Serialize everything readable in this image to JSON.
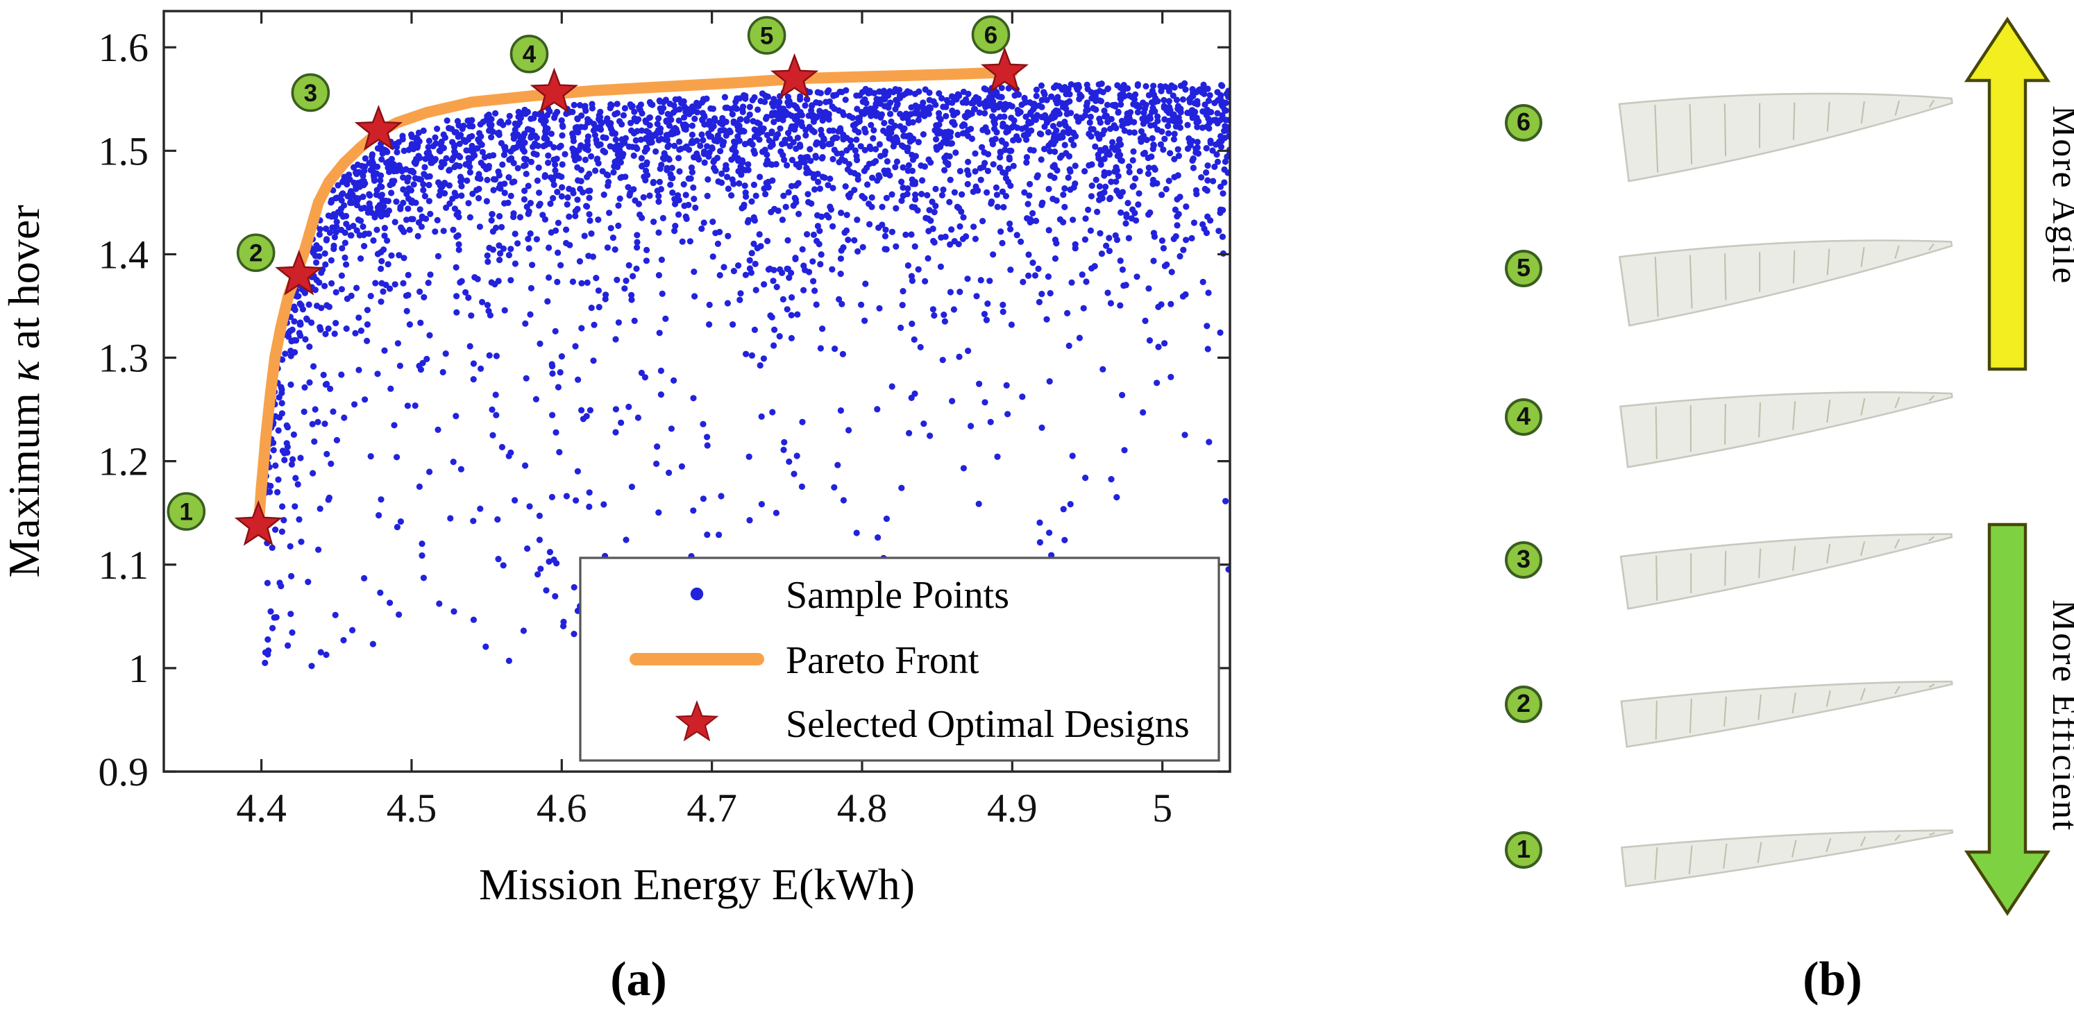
{
  "figure": {
    "panel_a_label": "(a)",
    "panel_b_label": "(b)"
  },
  "chart_data": {
    "type": "scatter",
    "title": "",
    "xlabel": "Mission Energy E(kWh)",
    "ylabel": "Maximum κ at hover",
    "xlim": [
      4.335,
      5.045
    ],
    "ylim": [
      0.9,
      1.635
    ],
    "grid": false,
    "legend_position": "inside lower-right",
    "xticks": [
      {
        "value": 4.4,
        "label": "4.4"
      },
      {
        "value": 4.5,
        "label": "4.5"
      },
      {
        "value": 4.6,
        "label": "4.6"
      },
      {
        "value": 4.7,
        "label": "4.7"
      },
      {
        "value": 4.8,
        "label": "4.8"
      },
      {
        "value": 4.9,
        "label": "4.9"
      },
      {
        "value": 5.0,
        "label": "5"
      }
    ],
    "yticks": [
      {
        "value": 0.9,
        "label": "0.9"
      },
      {
        "value": 1.0,
        "label": "1"
      },
      {
        "value": 1.1,
        "label": "1.1"
      },
      {
        "value": 1.2,
        "label": "1.2"
      },
      {
        "value": 1.3,
        "label": "1.3"
      },
      {
        "value": 1.4,
        "label": "1.4"
      },
      {
        "value": 1.5,
        "label": "1.5"
      },
      {
        "value": 1.6,
        "label": "1.6"
      }
    ],
    "legend": {
      "entries": [
        {
          "label": "Sample Points",
          "marker": "dot"
        },
        {
          "label": "Pareto Front",
          "marker": "line"
        },
        {
          "label": "Selected Optimal Designs",
          "marker": "star"
        }
      ]
    },
    "colors": {
      "samples": "#2222dd",
      "pareto": "#f7a24b",
      "stars": "#cf2128",
      "star_edge": "#8a1014",
      "badge": "#8dc63f",
      "badge_edge": "#3a5e20",
      "axis": "#262626"
    },
    "sample_points": {
      "count": 3200,
      "seed": 7,
      "x_range": [
        4.402,
        5.045
      ],
      "y_min": 1.0,
      "envelope_extension": [
        5.045,
        1.578
      ],
      "description": "Monte Carlo design sample cloud bounded above/left by the Pareto front; densest within ~0.05 of the front, sparse tail down to kappa ~1.0"
    },
    "pareto_front": [
      [
        4.398,
        1.135
      ],
      [
        4.4,
        1.175
      ],
      [
        4.403,
        1.225
      ],
      [
        4.406,
        1.265
      ],
      [
        4.409,
        1.3
      ],
      [
        4.413,
        1.33
      ],
      [
        4.418,
        1.36
      ],
      [
        4.423,
        1.38
      ],
      [
        4.428,
        1.4
      ],
      [
        4.433,
        1.425
      ],
      [
        4.438,
        1.45
      ],
      [
        4.445,
        1.47
      ],
      [
        4.455,
        1.488
      ],
      [
        4.465,
        1.502
      ],
      [
        4.478,
        1.518
      ],
      [
        4.49,
        1.527
      ],
      [
        4.51,
        1.537
      ],
      [
        4.54,
        1.547
      ],
      [
        4.58,
        1.553
      ],
      [
        4.62,
        1.558
      ],
      [
        4.67,
        1.562
      ],
      [
        4.72,
        1.566
      ],
      [
        4.76,
        1.57
      ],
      [
        4.81,
        1.572
      ],
      [
        4.86,
        1.574
      ],
      [
        4.9,
        1.576
      ]
    ],
    "selected_designs": [
      {
        "id": "1",
        "x": 4.398,
        "y": 1.138,
        "badge_dx": -52,
        "badge_dy": -10
      },
      {
        "id": "2",
        "x": 4.425,
        "y": 1.38,
        "badge_dx": -31,
        "badge_dy": -16
      },
      {
        "id": "3",
        "x": 4.478,
        "y": 1.52,
        "badge_dx": -49,
        "badge_dy": -27
      },
      {
        "id": "4",
        "x": 4.595,
        "y": 1.556,
        "badge_dx": -18,
        "badge_dy": -28
      },
      {
        "id": "5",
        "x": 4.755,
        "y": 1.57,
        "badge_dx": -20,
        "badge_dy": -31
      },
      {
        "id": "6",
        "x": 4.895,
        "y": 1.576,
        "badge_dx": -10,
        "badge_dy": -27
      }
    ]
  },
  "panel_b": {
    "designs": [
      {
        "id": "6",
        "chord": 56,
        "tilt": -7
      },
      {
        "id": "5",
        "chord": 50,
        "tilt": -8
      },
      {
        "id": "4",
        "chord": 44,
        "tilt": -7
      },
      {
        "id": "3",
        "chord": 38,
        "tilt": -8
      },
      {
        "id": "2",
        "chord": 33,
        "tilt": -7
      },
      {
        "id": "1",
        "chord": 28,
        "tilt": -6
      }
    ],
    "arrow_up_label": "More Agile",
    "arrow_down_label": "More Efficient",
    "arrow_up_color": "#f2ee1f",
    "arrow_down_color": "#7ed242",
    "arrow_edge_color": "#474708",
    "badge_color": "#8dc63f",
    "badge_edge_color": "#3a5e20",
    "blade_colors": {
      "body": "#ebebe6",
      "outline": "#c8c8bf",
      "rib": "#b7bda4"
    }
  }
}
